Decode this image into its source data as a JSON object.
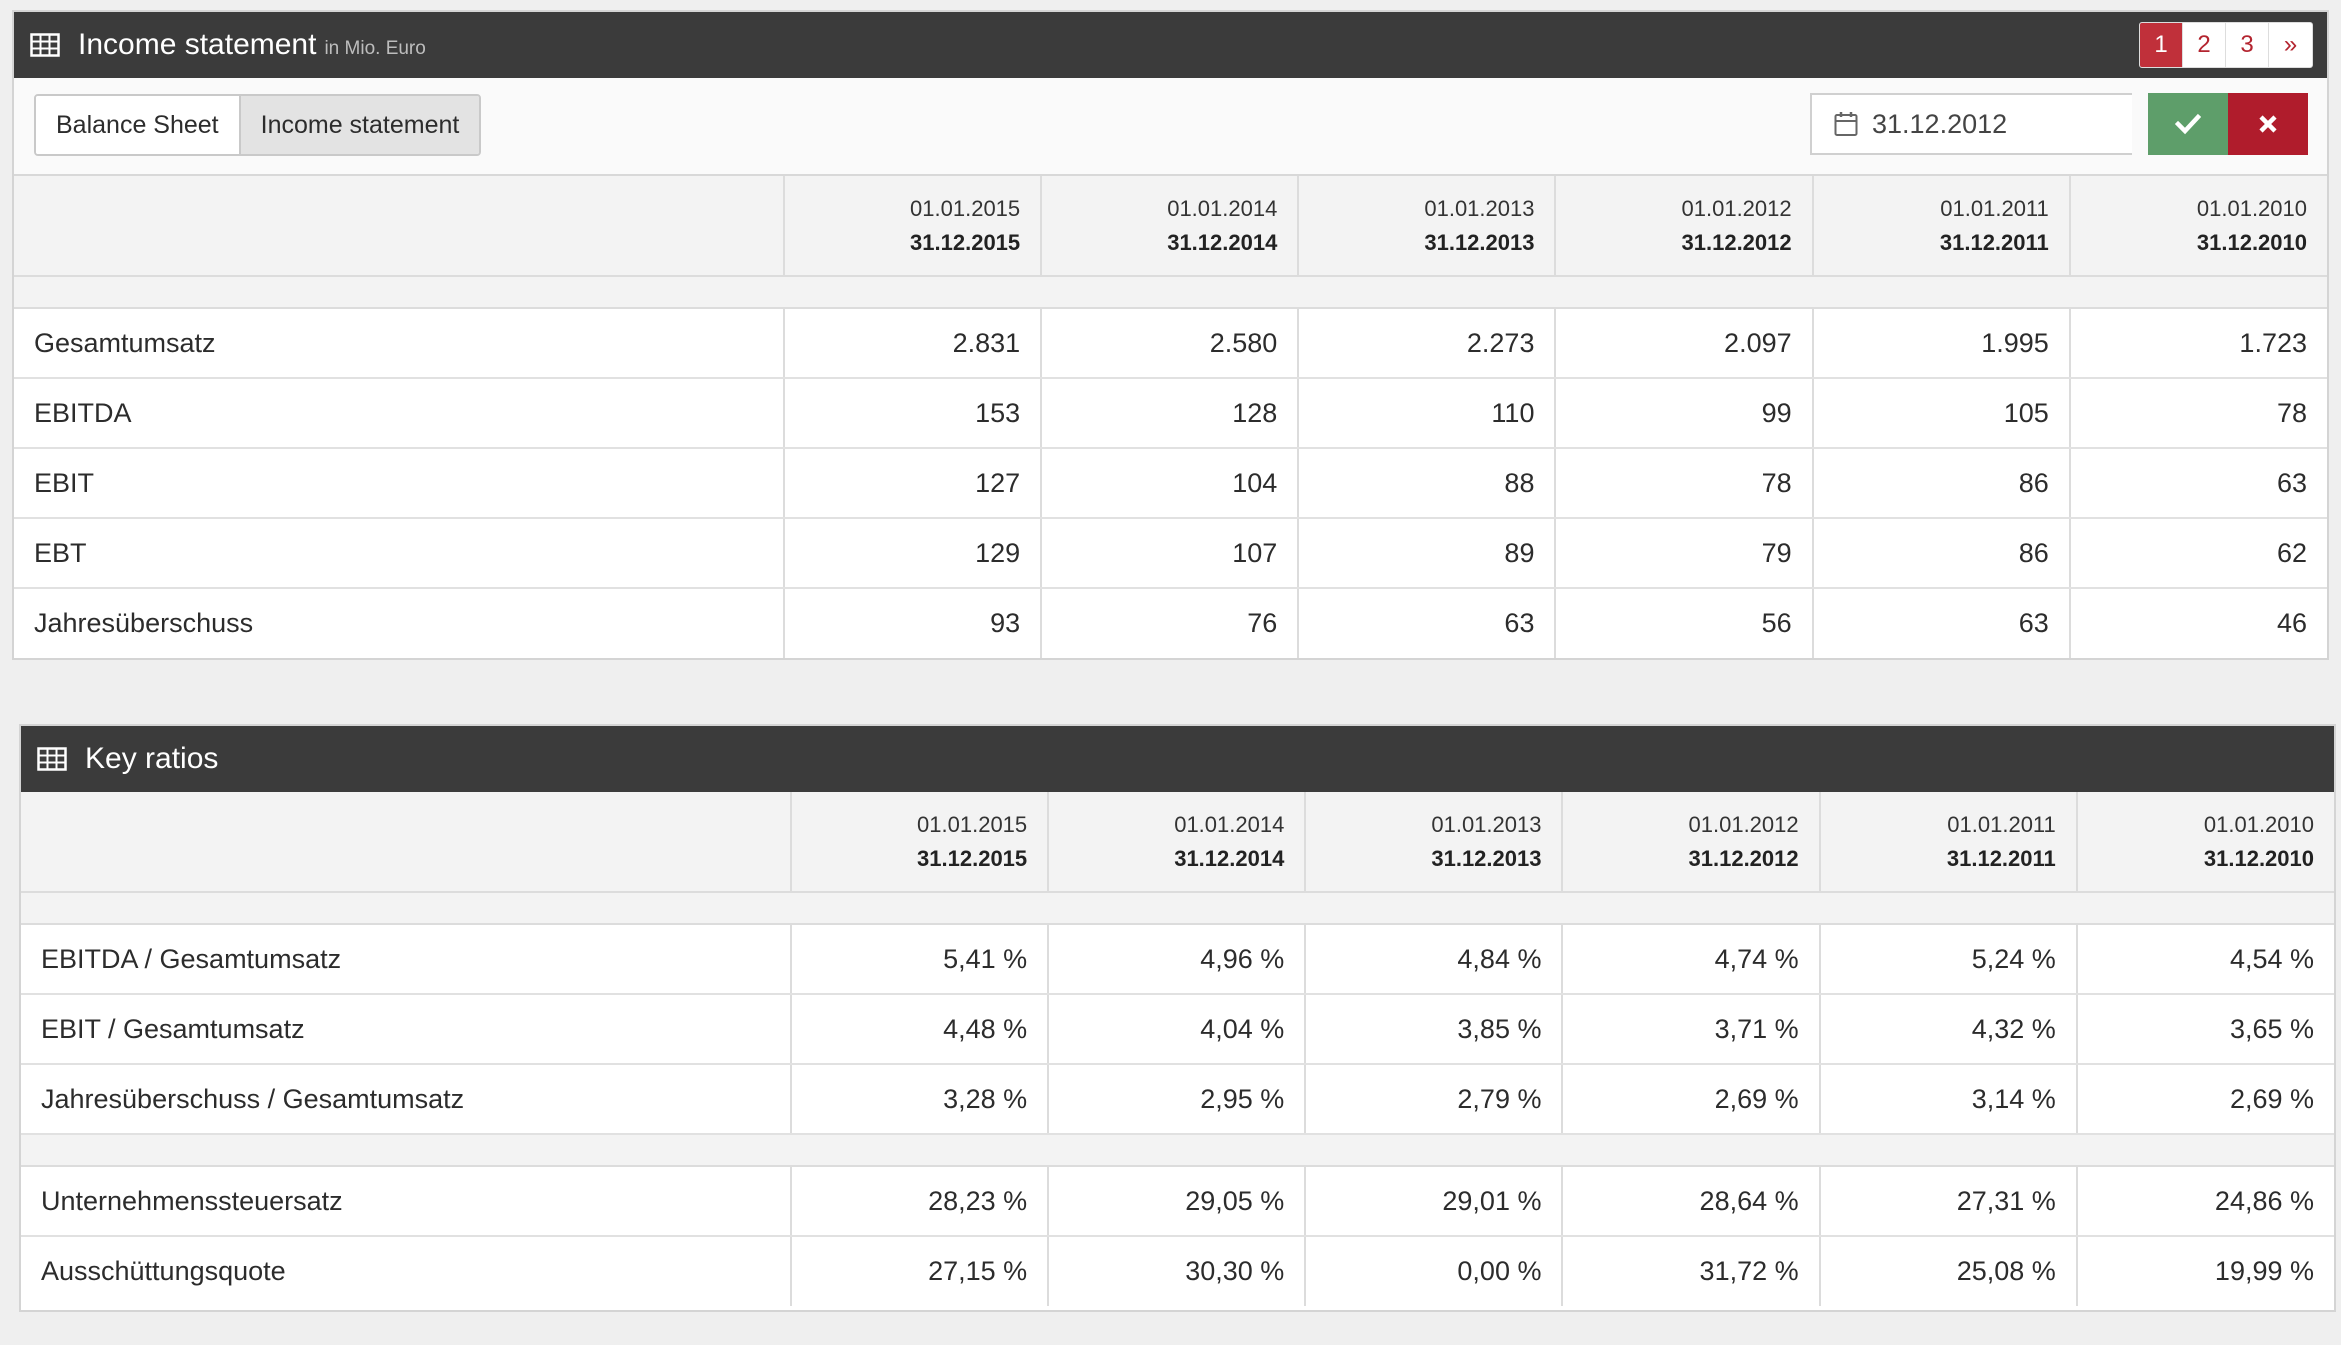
{
  "income": {
    "title": "Income statement",
    "unit": "in Mio. Euro",
    "pagination": [
      "1",
      "2",
      "3",
      "»"
    ],
    "tabs": [
      "Balance Sheet",
      "Income statement"
    ],
    "date_value": "31.12.2012",
    "periods": [
      {
        "from": "01.01.2015",
        "to": "31.12.2015"
      },
      {
        "from": "01.01.2014",
        "to": "31.12.2014"
      },
      {
        "from": "01.01.2013",
        "to": "31.12.2013"
      },
      {
        "from": "01.01.2012",
        "to": "31.12.2012"
      },
      {
        "from": "01.01.2011",
        "to": "31.12.2011"
      },
      {
        "from": "01.01.2010",
        "to": "31.12.2010"
      }
    ],
    "rows": [
      {
        "label": "Gesamtumsatz",
        "values": [
          "2.831",
          "2.580",
          "2.273",
          "2.097",
          "1.995",
          "1.723"
        ]
      },
      {
        "label": "EBITDA",
        "values": [
          "153",
          "128",
          "110",
          "99",
          "105",
          "78"
        ]
      },
      {
        "label": "EBIT",
        "values": [
          "127",
          "104",
          "88",
          "78",
          "86",
          "63"
        ]
      },
      {
        "label": "EBT",
        "values": [
          "129",
          "107",
          "89",
          "79",
          "86",
          "62"
        ]
      },
      {
        "label": "Jahresüberschuss",
        "values": [
          "93",
          "76",
          "63",
          "56",
          "63",
          "46"
        ]
      }
    ]
  },
  "ratios": {
    "title": "Key ratios",
    "periods": [
      {
        "from": "01.01.2015",
        "to": "31.12.2015"
      },
      {
        "from": "01.01.2014",
        "to": "31.12.2014"
      },
      {
        "from": "01.01.2013",
        "to": "31.12.2013"
      },
      {
        "from": "01.01.2012",
        "to": "31.12.2012"
      },
      {
        "from": "01.01.2011",
        "to": "31.12.2011"
      },
      {
        "from": "01.01.2010",
        "to": "31.12.2010"
      }
    ],
    "group1": [
      {
        "label": "EBITDA / Gesamtumsatz",
        "values": [
          "5,41 %",
          "4,96 %",
          "4,84 %",
          "4,74 %",
          "5,24 %",
          "4,54 %"
        ]
      },
      {
        "label": "EBIT / Gesamtumsatz",
        "values": [
          "4,48 %",
          "4,04 %",
          "3,85 %",
          "3,71 %",
          "4,32 %",
          "3,65 %"
        ]
      },
      {
        "label": "Jahresüberschuss / Gesamtumsatz",
        "values": [
          "3,28 %",
          "2,95 %",
          "2,79 %",
          "2,69 %",
          "3,14 %",
          "2,69 %"
        ]
      }
    ],
    "group2": [
      {
        "label": "Unternehmenssteuersatz",
        "values": [
          "28,23 %",
          "29,05 %",
          "29,01 %",
          "28,64 %",
          "27,31 %",
          "24,86 %"
        ]
      },
      {
        "label": "Ausschüttungsquote",
        "values": [
          "27,15 %",
          "30,30 %",
          "0,00 %",
          "31,72 %",
          "25,08 %",
          "19,99 %"
        ]
      }
    ]
  },
  "icons": {
    "header": "table-grid-icon",
    "date": "calendar-icon",
    "confirm": "check-icon",
    "cancel": "close-icon"
  },
  "colors": {
    "header_bg": "#3b3b3b",
    "accent_red": "#c0303a",
    "confirm_green": "#5e9e6a",
    "cancel_red": "#b01c2c"
  }
}
